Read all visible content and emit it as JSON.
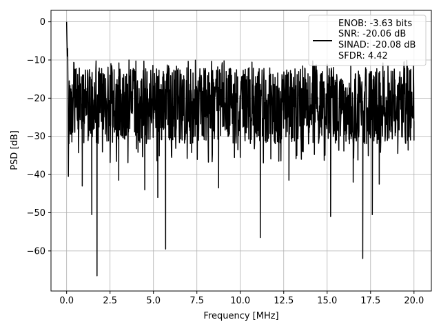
{
  "chart_data": {
    "type": "line",
    "title": "",
    "xlabel": "Frequency [MHz]",
    "ylabel": "PSD [dB]",
    "xlim": [
      -0.9,
      21.0
    ],
    "ylim": [
      -70.5,
      3.0
    ],
    "xticks": [
      0.0,
      2.5,
      5.0,
      7.5,
      10.0,
      12.5,
      15.0,
      17.5,
      20.0
    ],
    "xtick_labels": [
      "0.0",
      "2.5",
      "5.0",
      "7.5",
      "10.0",
      "12.5",
      "15.0",
      "17.5",
      "20.0"
    ],
    "yticks": [
      0,
      -10,
      -20,
      -30,
      -40,
      -50,
      -60
    ],
    "ytick_labels": [
      "0",
      "−10",
      "−20",
      "−30",
      "−40",
      "−50",
      "−60"
    ],
    "grid": true,
    "legend_placement": "top-right",
    "series": [
      {
        "color": "#000000",
        "noise_floor_db": [
          -12,
          -32
        ],
        "peaks": [
          {
            "x": 0.0,
            "y": 0.0
          },
          {
            "x": 0.05,
            "y": -5
          },
          {
            "x": 0.1,
            "y": -40.5
          },
          {
            "x": 0.9,
            "y": -43
          },
          {
            "x": 1.45,
            "y": -50.5
          },
          {
            "x": 1.75,
            "y": -66.5
          },
          {
            "x": 3.0,
            "y": -41.5
          },
          {
            "x": 4.5,
            "y": -44
          },
          {
            "x": 5.25,
            "y": -46
          },
          {
            "x": 5.7,
            "y": -59.5
          },
          {
            "x": 8.75,
            "y": -43.5
          },
          {
            "x": 11.15,
            "y": -56.5
          },
          {
            "x": 12.8,
            "y": -41.5
          },
          {
            "x": 15.2,
            "y": -51
          },
          {
            "x": 16.5,
            "y": -42
          },
          {
            "x": 17.05,
            "y": -62
          },
          {
            "x": 17.6,
            "y": -50.5
          },
          {
            "x": 18.0,
            "y": -42.5
          },
          {
            "x": 20.0,
            "y": -31
          }
        ]
      }
    ],
    "legend_entries": [
      "ENOB: -3.63 bits",
      "SNR: -20.06 dB",
      "SINAD: -20.08 dB",
      "SFDR: 4.42"
    ]
  }
}
